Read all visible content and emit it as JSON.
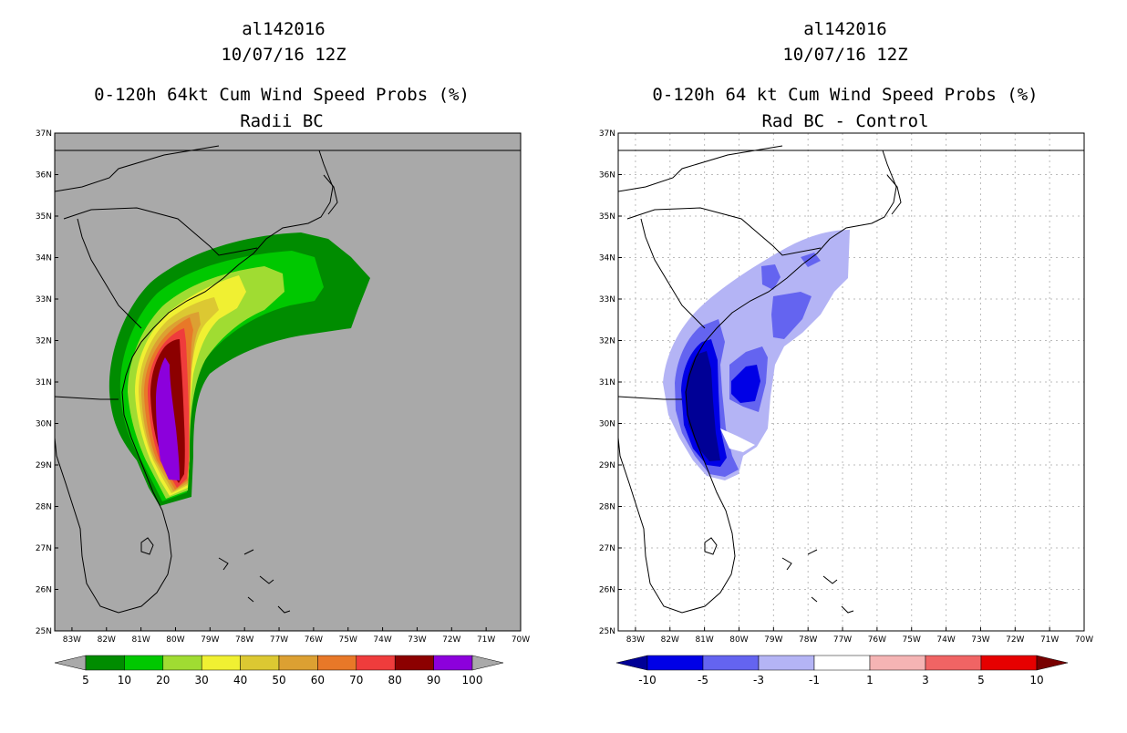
{
  "panels": [
    {
      "storm_id": "al142016",
      "date": "10/07/16 12Z",
      "title": "0-120h 64kt Cum Wind Speed Probs (%)",
      "subtitle": "Radii BC",
      "background": "#a9a9a9",
      "colorbar": {
        "colors": [
          "#008c00",
          "#00c800",
          "#a0dc32",
          "#f0f032",
          "#dcc832",
          "#dca032",
          "#e87828",
          "#ef3c3c",
          "#8c0000",
          "#8c00dc"
        ],
        "labels": [
          "5",
          "10",
          "20",
          "30",
          "40",
          "50",
          "60",
          "70",
          "80",
          "90",
          "100"
        ],
        "under_color": "#a9a9a9",
        "over_color": "#a9a9a9"
      }
    },
    {
      "storm_id": "al142016",
      "date": "10/07/16 12Z",
      "title": "0-120h 64 kt Cum Wind Speed Probs (%)",
      "subtitle": "Rad BC - Control",
      "background": "#ffffff",
      "colorbar": {
        "colors": [
          "#0000e6",
          "#6464f0",
          "#b4b4f5",
          "#ffffff",
          "#f5b4b4",
          "#f06464",
          "#e60000"
        ],
        "labels": [
          "-10",
          "-5",
          "-3",
          "-1",
          "1",
          "3",
          "5",
          "10"
        ],
        "under_color": "#000096",
        "over_color": "#780000"
      }
    }
  ],
  "map": {
    "lat_labels": [
      "25N",
      "26N",
      "27N",
      "28N",
      "29N",
      "30N",
      "31N",
      "32N",
      "33N",
      "34N",
      "35N",
      "36N",
      "37N"
    ],
    "lon_labels": [
      "83W",
      "82W",
      "81W",
      "80W",
      "79W",
      "78W",
      "77W",
      "76W",
      "75W",
      "74W",
      "73W",
      "72W",
      "71W",
      "70W"
    ],
    "lon_range": [
      -83.5,
      -70
    ],
    "lat_range": [
      25,
      37
    ]
  }
}
